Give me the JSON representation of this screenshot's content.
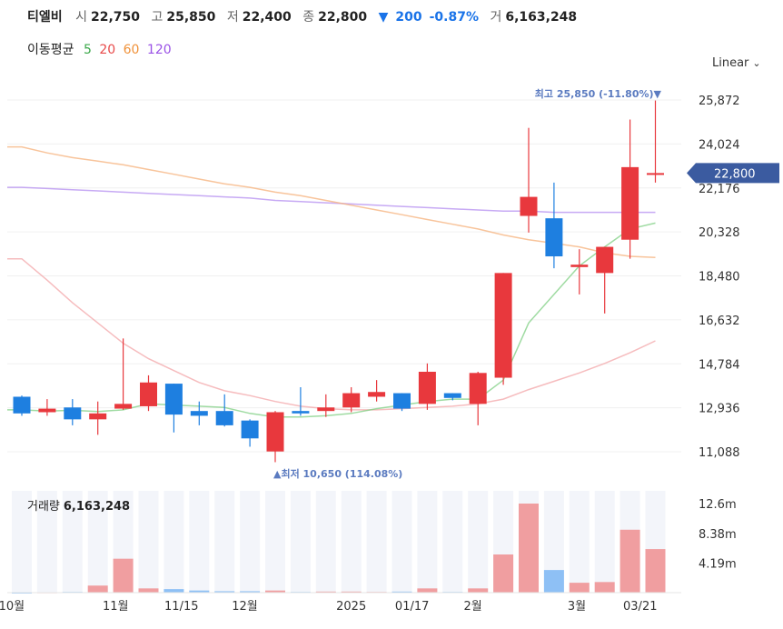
{
  "header": {
    "name": "티엘비",
    "open_label": "시",
    "open": "22,750",
    "high_label": "고",
    "high": "25,850",
    "low_label": "저",
    "low": "22,400",
    "close_label": "종",
    "close": "22,800",
    "change_arrow": "▼",
    "change": "200",
    "change_pct": "-0.87%",
    "volume_label": "거",
    "volume": "6,163,248"
  },
  "ma_legend": {
    "label": "이동평균",
    "items": [
      {
        "period": "5",
        "color": "#3aa84a"
      },
      {
        "period": "20",
        "color": "#e84a4a"
      },
      {
        "period": "60",
        "color": "#f0923a"
      },
      {
        "period": "120",
        "color": "#9a52e6"
      }
    ]
  },
  "scale_selector": "Linear",
  "colors": {
    "up": "#e8383d",
    "down": "#1e7fe0",
    "vol_up": "#f09ea0",
    "vol_down": "#8ec0f5",
    "price_tag": "#3b5ba0"
  },
  "chart_data": {
    "type": "candlestick",
    "y_ticks": [
      "25,872",
      "24,024",
      "22,176",
      "20,328",
      "18,480",
      "16,632",
      "14,784",
      "12,936",
      "11,088"
    ],
    "ylim": [
      10500,
      26600
    ],
    "current_price": "22,800",
    "high_annotation": "최고 25,850 (-11.80%)▼",
    "low_annotation": "▲최저 10,650 (114.08%)",
    "x_labels": [
      "10월",
      "11월",
      "11/15",
      "12월",
      "2025",
      "01/17",
      "2월",
      "3월",
      "03/21"
    ],
    "candles": [
      {
        "o": 13400,
        "h": 13450,
        "c": 12700,
        "l": 12600
      },
      {
        "o": 12750,
        "h": 13300,
        "c": 12900,
        "l": 12600
      },
      {
        "o": 12950,
        "h": 13300,
        "c": 12450,
        "l": 12200
      },
      {
        "o": 12450,
        "h": 13200,
        "c": 12700,
        "l": 11800
      },
      {
        "o": 12900,
        "h": 15850,
        "c": 13100,
        "l": 12850
      },
      {
        "o": 13000,
        "h": 14300,
        "c": 14000,
        "l": 12800
      },
      {
        "o": 13950,
        "h": 13950,
        "c": 12650,
        "l": 11900
      },
      {
        "o": 12800,
        "h": 13200,
        "c": 12600,
        "l": 12200
      },
      {
        "o": 12800,
        "h": 13500,
        "c": 12200,
        "l": 12150
      },
      {
        "o": 12400,
        "h": 12450,
        "c": 11650,
        "l": 11300
      },
      {
        "o": 11100,
        "h": 12800,
        "c": 12750,
        "l": 10650
      },
      {
        "o": 12800,
        "h": 13800,
        "c": 12700,
        "l": 12600
      },
      {
        "o": 12800,
        "h": 13500,
        "c": 12950,
        "l": 12550
      },
      {
        "o": 12950,
        "h": 13800,
        "c": 13550,
        "l": 12750
      },
      {
        "o": 13400,
        "h": 14100,
        "c": 13600,
        "l": 13200
      },
      {
        "o": 13550,
        "h": 13550,
        "c": 12900,
        "l": 12800
      },
      {
        "o": 13100,
        "h": 14800,
        "c": 14450,
        "l": 12850
      },
      {
        "o": 13550,
        "h": 13550,
        "c": 13350,
        "l": 13250
      },
      {
        "o": 13100,
        "h": 14450,
        "c": 14400,
        "l": 12200
      },
      {
        "o": 14200,
        "h": 18600,
        "c": 18600,
        "l": 13900
      },
      {
        "o": 21000,
        "h": 24700,
        "c": 21800,
        "l": 20300
      },
      {
        "o": 20900,
        "h": 22400,
        "c": 19300,
        "l": 18800
      },
      {
        "o": 18850,
        "h": 19600,
        "c": 18950,
        "l": 17700
      },
      {
        "o": 18600,
        "h": 19700,
        "c": 19700,
        "l": 16900
      },
      {
        "o": 20000,
        "h": 25050,
        "c": 23050,
        "l": 19200
      },
      {
        "o": 22750,
        "h": 25850,
        "c": 22800,
        "l": 22400
      }
    ],
    "ma5": [
      12850,
      12800,
      12830,
      12780,
      12850,
      13100,
      13050,
      13000,
      12950,
      12700,
      12550,
      12550,
      12600,
      12700,
      12900,
      13050,
      13200,
      13300,
      13300,
      14100,
      16500,
      17700,
      18900,
      19700,
      20450,
      20700
    ],
    "ma20": [
      19200,
      18300,
      17350,
      16500,
      15650,
      15000,
      14500,
      14000,
      13650,
      13450,
      13200,
      13000,
      12900,
      12850,
      12850,
      12900,
      12950,
      13000,
      13100,
      13300,
      13700,
      14050,
      14400,
      14800,
      15250,
      15750
    ],
    "ma60": [
      23900,
      23650,
      23450,
      23300,
      23150,
      22950,
      22750,
      22550,
      22350,
      22200,
      22000,
      21850,
      21650,
      21450,
      21250,
      21050,
      20850,
      20650,
      20450,
      20200,
      20000,
      19850,
      19700,
      19450,
      19300,
      19250
    ],
    "ma120": [
      22200,
      22150,
      22100,
      22050,
      22000,
      21950,
      21900,
      21850,
      21800,
      21750,
      21650,
      21600,
      21550,
      21500,
      21450,
      21400,
      21350,
      21300,
      21250,
      21200,
      21200,
      21150,
      21150,
      21150,
      21150,
      21150
    ],
    "volume": {
      "label": "거래량",
      "value": "6,163,248",
      "ticks": [
        "12.6m",
        "8.38m",
        "4.19m"
      ],
      "max": 14400000,
      "bars": [
        0,
        0,
        0,
        0,
        0,
        0,
        0,
        0,
        0,
        0,
        0,
        0,
        0,
        0,
        0,
        0,
        0,
        0,
        0,
        0,
        0,
        0,
        0,
        0,
        0,
        0
      ],
      "volumes": [
        0,
        50000,
        100000,
        1000000,
        4800000,
        600000,
        500000,
        300000,
        200000,
        200000,
        300000,
        100000,
        150000,
        150000,
        100000,
        150000,
        600000,
        100000,
        600000,
        5400000,
        12600000,
        3200000,
        1400000,
        1500000,
        8900000,
        6163248
      ]
    }
  }
}
